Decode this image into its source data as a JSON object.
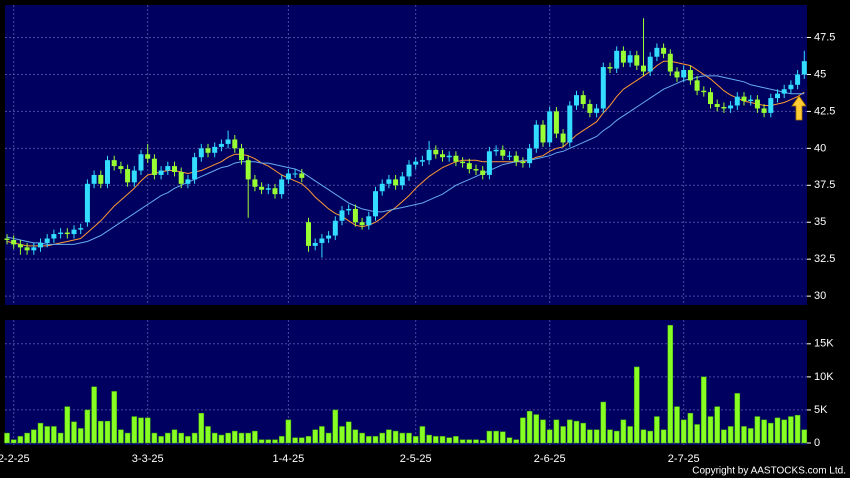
{
  "chart_data": [
    {
      "type": "candlestick",
      "categories": [
        null,
        "2-2-25",
        null,
        null,
        null,
        null,
        null,
        null,
        null,
        null,
        null,
        null,
        null,
        null,
        null,
        null,
        null,
        null,
        null,
        null,
        null,
        "3-3-25",
        null,
        null,
        null,
        null,
        null,
        null,
        null,
        null,
        null,
        null,
        null,
        null,
        null,
        null,
        null,
        null,
        null,
        null,
        null,
        null,
        "1-4-25",
        null,
        null,
        null,
        null,
        null,
        null,
        null,
        null,
        null,
        null,
        null,
        null,
        null,
        null,
        null,
        null,
        null,
        null,
        "2-5-25",
        null,
        null,
        null,
        null,
        null,
        null,
        null,
        null,
        null,
        null,
        null,
        null,
        null,
        null,
        null,
        null,
        null,
        null,
        null,
        "2-6-25",
        null,
        null,
        null,
        null,
        null,
        null,
        null,
        null,
        null,
        null,
        null,
        null,
        null,
        null,
        null,
        null,
        null,
        null,
        null,
        "2-7-25",
        null,
        null,
        null,
        null,
        null,
        null,
        null,
        null,
        null,
        null,
        null,
        null,
        null,
        null,
        null,
        null,
        null,
        null
      ],
      "open": [
        33.9,
        33.8,
        33.5,
        33.3,
        33.1,
        33.3,
        33.6,
        33.9,
        34.2,
        34.3,
        34.2,
        34.5,
        35.0,
        37.6,
        38.2,
        37.6,
        39.2,
        38.8,
        38.6,
        37.7,
        38.5,
        39.6,
        39.3,
        38.2,
        38.5,
        38.8,
        38.4,
        37.6,
        37.9,
        39.4,
        40.0,
        39.7,
        40.1,
        40.3,
        40.6,
        40.0,
        39.2,
        37.9,
        37.4,
        37.2,
        37.3,
        36.9,
        37.9,
        38.3,
        38.3,
        35.0,
        33.4,
        33.6,
        33.9,
        34.1,
        35.1,
        35.8,
        35.9,
        35.0,
        34.8,
        35.4,
        37.1,
        37.6,
        37.9,
        37.5,
        38.1,
        38.9,
        39.1,
        39.2,
        39.9,
        39.6,
        39.4,
        39.5,
        39.1,
        39.0,
        38.6,
        38.5,
        38.2,
        39.8,
        39.9,
        39.5,
        39.5,
        39.1,
        39.0,
        40.0,
        41.6,
        40.4,
        42.5,
        41.0,
        40.4,
        42.9,
        43.6,
        43.0,
        42.4,
        42.7,
        45.5,
        45.4,
        46.6,
        45.8,
        46.3,
        45.6,
        45.2,
        46.2,
        46.8,
        46.4,
        45.2,
        44.8,
        45.3,
        44.6,
        43.9,
        43.8,
        43.0,
        42.8,
        42.7,
        42.9,
        43.5,
        43.2,
        43.3,
        42.7,
        42.4,
        43.4,
        43.7,
        44.0,
        44.3,
        45.0
      ],
      "high": [
        34.2,
        34.1,
        33.8,
        33.6,
        33.6,
        33.9,
        34.2,
        34.5,
        34.6,
        34.6,
        34.8,
        34.9,
        37.9,
        38.5,
        38.5,
        39.5,
        39.5,
        39.1,
        38.9,
        38.8,
        39.9,
        40.3,
        39.6,
        38.8,
        39.1,
        39.1,
        38.7,
        38.2,
        39.7,
        40.3,
        40.3,
        40.4,
        40.6,
        41.2,
        40.9,
        40.3,
        39.5,
        38.2,
        37.7,
        37.6,
        37.6,
        38.2,
        38.6,
        38.6,
        38.6,
        35.3,
        33.9,
        34.2,
        34.4,
        35.4,
        36.1,
        36.2,
        36.2,
        35.3,
        35.7,
        37.4,
        37.9,
        38.2,
        38.2,
        38.4,
        39.2,
        39.4,
        39.5,
        40.5,
        40.2,
        39.9,
        39.8,
        39.8,
        39.4,
        39.3,
        38.9,
        38.8,
        40.1,
        40.2,
        40.2,
        39.8,
        39.8,
        39.4,
        40.3,
        41.9,
        41.9,
        42.8,
        42.8,
        41.3,
        43.2,
        43.9,
        43.9,
        43.3,
        43.0,
        45.8,
        45.8,
        46.9,
        46.9,
        46.6,
        46.6,
        48.8,
        46.5,
        47.1,
        47.1,
        46.7,
        45.5,
        45.6,
        45.6,
        44.9,
        44.2,
        44.1,
        43.3,
        43.1,
        43.2,
        43.8,
        43.8,
        43.6,
        43.6,
        43.0,
        43.7,
        44.0,
        44.3,
        44.6,
        45.3,
        46.6
      ],
      "low": [
        33.5,
        33.2,
        32.8,
        32.8,
        32.8,
        33.0,
        33.3,
        33.6,
        33.9,
        33.9,
        33.9,
        34.2,
        34.7,
        37.3,
        37.3,
        37.3,
        38.5,
        38.3,
        37.4,
        37.4,
        38.2,
        39.0,
        37.9,
        37.9,
        38.2,
        38.1,
        37.3,
        37.3,
        37.6,
        39.1,
        39.4,
        39.4,
        39.8,
        40.0,
        39.7,
        38.9,
        35.3,
        37.1,
        36.9,
        36.9,
        36.6,
        36.6,
        37.6,
        38.0,
        37.7,
        33.0,
        33.1,
        32.6,
        33.6,
        33.8,
        34.8,
        35.5,
        34.7,
        34.5,
        34.5,
        35.1,
        36.8,
        37.3,
        37.2,
        37.2,
        37.8,
        38.6,
        38.8,
        38.9,
        39.3,
        39.1,
        39.1,
        38.8,
        38.7,
        38.3,
        38.2,
        37.9,
        37.9,
        39.5,
        39.2,
        39.2,
        38.8,
        38.7,
        38.7,
        39.7,
        40.1,
        40.1,
        40.7,
        40.1,
        40.1,
        42.6,
        42.7,
        42.1,
        42.1,
        42.4,
        45.1,
        45.1,
        45.5,
        45.5,
        45.3,
        44.9,
        44.9,
        45.9,
        46.1,
        44.9,
        44.5,
        44.5,
        44.3,
        43.6,
        43.5,
        42.7,
        42.5,
        42.4,
        42.4,
        42.6,
        42.9,
        42.9,
        42.4,
        42.1,
        42.1,
        43.1,
        43.4,
        43.7,
        44.0,
        44.7
      ],
      "close": [
        33.8,
        33.5,
        33.3,
        33.1,
        33.3,
        33.6,
        33.9,
        34.2,
        34.3,
        34.2,
        34.5,
        34.6,
        37.6,
        38.2,
        37.6,
        39.2,
        38.8,
        38.6,
        37.7,
        38.5,
        39.6,
        39.3,
        38.2,
        38.5,
        38.8,
        38.4,
        37.6,
        37.9,
        39.4,
        40.0,
        39.7,
        40.1,
        40.3,
        40.6,
        40.0,
        39.2,
        37.9,
        37.4,
        37.2,
        37.3,
        36.9,
        37.9,
        38.3,
        38.3,
        38.0,
        33.4,
        33.6,
        33.9,
        34.1,
        35.1,
        35.8,
        35.9,
        35.0,
        34.8,
        35.4,
        37.1,
        37.6,
        37.9,
        37.5,
        38.1,
        38.9,
        39.1,
        39.2,
        39.9,
        39.6,
        39.4,
        39.5,
        39.1,
        39.0,
        38.6,
        38.5,
        38.2,
        39.8,
        39.9,
        39.5,
        39.5,
        39.1,
        39.0,
        40.0,
        41.6,
        40.4,
        42.5,
        41.0,
        40.4,
        42.9,
        43.6,
        43.0,
        42.4,
        42.7,
        45.5,
        45.4,
        46.6,
        45.8,
        46.3,
        45.6,
        45.2,
        46.2,
        46.8,
        46.4,
        45.2,
        44.8,
        45.3,
        44.6,
        43.9,
        43.8,
        43.0,
        42.8,
        42.7,
        42.9,
        43.5,
        43.2,
        43.3,
        42.7,
        42.4,
        43.4,
        43.7,
        44.0,
        44.3,
        45.0,
        45.9
      ],
      "up_color": "#33ddff",
      "down_color": "#99ff33",
      "series": [
        {
          "color": "#ff9933",
          "values": [
            33.7,
            33.6,
            33.5,
            33.4,
            33.4,
            33.4,
            33.4,
            33.5,
            33.6,
            33.7,
            33.8,
            33.9,
            34.3,
            34.7,
            35.1,
            35.6,
            36.1,
            36.5,
            36.9,
            37.3,
            37.8,
            38.2,
            38.3,
            38.4,
            38.5,
            38.5,
            38.4,
            38.3,
            38.4,
            38.5,
            38.7,
            38.9,
            39.1,
            39.4,
            39.6,
            39.6,
            39.5,
            39.3,
            39.0,
            38.8,
            38.5,
            38.2,
            38.0,
            37.8,
            37.6,
            37.2,
            36.7,
            36.3,
            35.9,
            35.6,
            35.4,
            35.1,
            34.8,
            34.7,
            34.8,
            35.0,
            35.3,
            35.7,
            36.0,
            36.4,
            36.8,
            37.3,
            37.7,
            38.1,
            38.4,
            38.7,
            38.9,
            39.1,
            39.2,
            39.2,
            39.2,
            39.1,
            39.1,
            39.1,
            39.1,
            39.1,
            39.1,
            39.1,
            39.2,
            39.4,
            39.5,
            39.8,
            40.0,
            40.1,
            40.5,
            40.9,
            41.2,
            41.5,
            41.8,
            42.4,
            42.9,
            43.5,
            44.0,
            44.3,
            44.6,
            44.9,
            45.2,
            45.6,
            45.9,
            45.9,
            45.8,
            45.7,
            45.6,
            45.3,
            45.0,
            44.7,
            44.3,
            43.9,
            43.6,
            43.4,
            43.2,
            43.1,
            43.0,
            42.9,
            42.9,
            43.0,
            43.1,
            43.3,
            43.5,
            43.8
          ]
        },
        {
          "color": "#66aaee",
          "values": [
            34.0,
            33.9,
            33.8,
            33.7,
            33.6,
            33.6,
            33.5,
            33.5,
            33.5,
            33.5,
            33.5,
            33.6,
            33.7,
            33.9,
            34.1,
            34.4,
            34.7,
            35.0,
            35.3,
            35.6,
            35.9,
            36.2,
            36.5,
            36.8,
            37.0,
            37.3,
            37.5,
            37.7,
            37.9,
            38.1,
            38.3,
            38.5,
            38.7,
            38.8,
            39.0,
            39.1,
            39.1,
            39.1,
            39.0,
            39.0,
            38.9,
            38.8,
            38.7,
            38.6,
            38.4,
            38.1,
            37.8,
            37.5,
            37.2,
            36.9,
            36.6,
            36.3,
            36.1,
            35.9,
            35.8,
            35.7,
            35.7,
            35.8,
            35.9,
            36.0,
            36.1,
            36.2,
            36.3,
            36.5,
            36.7,
            36.9,
            37.2,
            37.5,
            37.7,
            37.9,
            38.1,
            38.3,
            38.5,
            38.7,
            38.9,
            39.0,
            39.1,
            39.2,
            39.2,
            39.3,
            39.4,
            39.5,
            39.7,
            39.8,
            40.0,
            40.2,
            40.4,
            40.6,
            40.8,
            41.2,
            41.5,
            41.9,
            42.2,
            42.5,
            42.8,
            43.1,
            43.4,
            43.7,
            44.0,
            44.2,
            44.4,
            44.6,
            44.7,
            44.8,
            44.9,
            44.9,
            44.9,
            44.8,
            44.7,
            44.6,
            44.5,
            44.3,
            44.2,
            44.1,
            44.0,
            43.9,
            43.8,
            43.7,
            43.7,
            43.7
          ]
        }
      ],
      "ylim": [
        29.4,
        49.7
      ],
      "yticks": [
        30,
        32.5,
        35,
        37.5,
        40,
        42.5,
        45,
        47.5
      ],
      "grid": true
    },
    {
      "type": "bar",
      "color": "#88ff22",
      "values": [
        1500,
        500,
        1000,
        1500,
        2000,
        3000,
        2500,
        2500,
        1500,
        5500,
        3200,
        2200,
        5000,
        8500,
        3300,
        3300,
        7800,
        2000,
        1500,
        4000,
        3800,
        3800,
        1500,
        1000,
        1500,
        2000,
        1500,
        1000,
        1500,
        4500,
        2500,
        1500,
        1200,
        1500,
        1800,
        1500,
        1500,
        1800,
        500,
        500,
        500,
        1000,
        3500,
        800,
        800,
        1000,
        2000,
        2500,
        1500,
        5000,
        2500,
        3200,
        2000,
        1500,
        1000,
        1000,
        1500,
        2000,
        1800,
        1500,
        1500,
        1000,
        2500,
        1200,
        1000,
        1000,
        800,
        1000,
        500,
        500,
        500,
        400,
        1800,
        1800,
        1700,
        800,
        500,
        3800,
        4800,
        4300,
        3500,
        2000,
        3500,
        2500,
        3500,
        3300,
        3000,
        2000,
        2000,
        6200,
        2000,
        1800,
        3500,
        2500,
        11500,
        2000,
        1800,
        4000,
        2000,
        17800,
        5500,
        3500,
        4500,
        2800,
        10000,
        4000,
        5500,
        2000,
        2500,
        7500,
        2500,
        2200,
        4000,
        3500,
        3000,
        3800,
        3500,
        4000,
        4200,
        2000
      ],
      "ylim": [
        0,
        18600
      ],
      "yticks": [
        0,
        {
          "value": 5000,
          "label": "5K"
        },
        {
          "value": 10000,
          "label": "10K"
        },
        {
          "value": 15000,
          "label": "15K"
        }
      ],
      "grid": true
    }
  ],
  "copyright": "Copyright by AASTOCKS.com Ltd."
}
